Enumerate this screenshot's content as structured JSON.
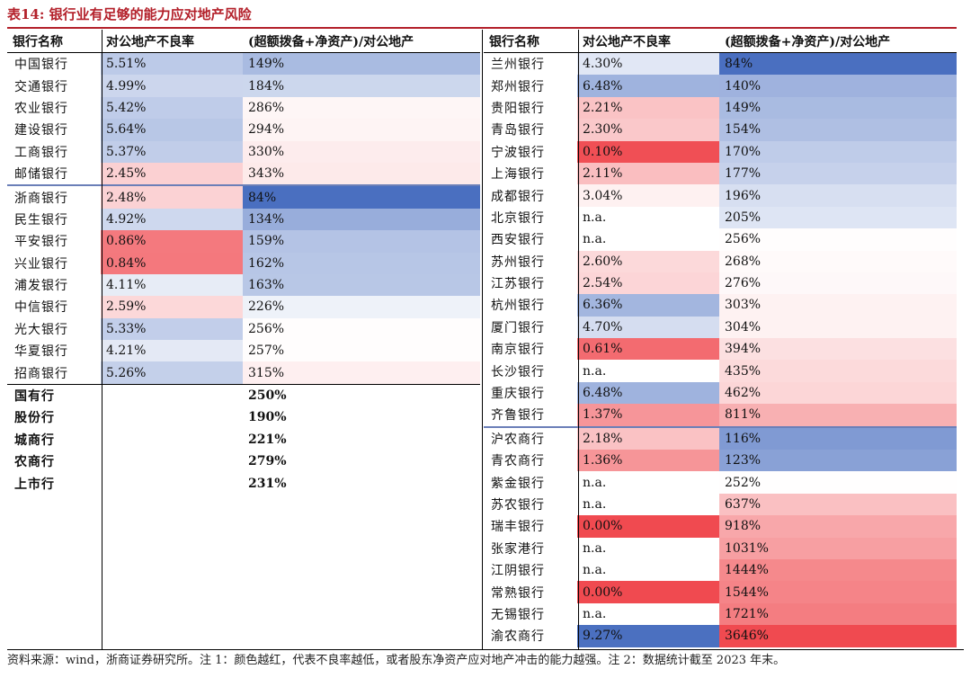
{
  "title": "表14:  银行业有足够的能力应对地产风险",
  "headers": {
    "name": "银行名称",
    "npl": "对公地产不良率",
    "ratio": "(超额拨备+净资产)/对公地产"
  },
  "colors": {
    "title_red": "#b3202a",
    "scale_blue": "#4a6fc0",
    "scale_white": "#ffffff",
    "scale_red": "#f04a50"
  },
  "left_groups": [
    {
      "rows": [
        {
          "name": "中国银行",
          "npl": "5.51%",
          "ratio": "149%"
        },
        {
          "name": "交通银行",
          "npl": "4.99%",
          "ratio": "184%"
        },
        {
          "name": "农业银行",
          "npl": "5.42%",
          "ratio": "286%"
        },
        {
          "name": "建设银行",
          "npl": "5.64%",
          "ratio": "294%"
        },
        {
          "name": "工商银行",
          "npl": "5.37%",
          "ratio": "330%"
        },
        {
          "name": "邮储银行",
          "npl": "2.45%",
          "ratio": "343%"
        }
      ]
    },
    {
      "rows": [
        {
          "name": "浙商银行",
          "npl": "2.48%",
          "ratio": "84%"
        },
        {
          "name": "民生银行",
          "npl": "4.92%",
          "ratio": "134%"
        },
        {
          "name": "平安银行",
          "npl": "0.86%",
          "ratio": "159%"
        },
        {
          "name": "兴业银行",
          "npl": "0.84%",
          "ratio": "162%"
        },
        {
          "name": "浦发银行",
          "npl": "4.11%",
          "ratio": "163%"
        },
        {
          "name": "中信银行",
          "npl": "2.59%",
          "ratio": "226%"
        },
        {
          "name": "光大银行",
          "npl": "5.33%",
          "ratio": "256%"
        },
        {
          "name": "华夏银行",
          "npl": "4.21%",
          "ratio": "257%"
        },
        {
          "name": "招商银行",
          "npl": "5.26%",
          "ratio": "315%"
        }
      ]
    }
  ],
  "summary": [
    {
      "name": "国有行",
      "npl": "",
      "ratio": "250%"
    },
    {
      "name": "股份行",
      "npl": "",
      "ratio": "190%"
    },
    {
      "name": "城商行",
      "npl": "",
      "ratio": "221%"
    },
    {
      "name": "农商行",
      "npl": "",
      "ratio": "279%"
    },
    {
      "name": "上市行",
      "npl": "",
      "ratio": "231%"
    }
  ],
  "right_groups": [
    {
      "rows": [
        {
          "name": "兰州银行",
          "npl": "4.30%",
          "ratio": "84%"
        },
        {
          "name": "郑州银行",
          "npl": "6.48%",
          "ratio": "140%"
        },
        {
          "name": "贵阳银行",
          "npl": "2.21%",
          "ratio": "149%"
        },
        {
          "name": "青岛银行",
          "npl": "2.30%",
          "ratio": "154%"
        },
        {
          "name": "宁波银行",
          "npl": "0.10%",
          "ratio": "170%"
        },
        {
          "name": "上海银行",
          "npl": "2.11%",
          "ratio": "177%"
        },
        {
          "name": "成都银行",
          "npl": "3.04%",
          "ratio": "196%"
        },
        {
          "name": "北京银行",
          "npl": "n.a.",
          "ratio": "205%"
        },
        {
          "name": "西安银行",
          "npl": "n.a.",
          "ratio": "256%"
        },
        {
          "name": "苏州银行",
          "npl": "2.60%",
          "ratio": "268%"
        },
        {
          "name": "江苏银行",
          "npl": "2.54%",
          "ratio": "276%"
        },
        {
          "name": "杭州银行",
          "npl": "6.36%",
          "ratio": "303%"
        },
        {
          "name": "厦门银行",
          "npl": "4.70%",
          "ratio": "304%"
        },
        {
          "name": "南京银行",
          "npl": "0.61%",
          "ratio": "394%"
        },
        {
          "name": "长沙银行",
          "npl": "n.a.",
          "ratio": "435%"
        },
        {
          "name": "重庆银行",
          "npl": "6.48%",
          "ratio": "462%"
        },
        {
          "name": "齐鲁银行",
          "npl": "1.37%",
          "ratio": "811%"
        }
      ]
    },
    {
      "rows": [
        {
          "name": "沪农商行",
          "npl": "2.18%",
          "ratio": "116%"
        },
        {
          "name": "青农商行",
          "npl": "1.36%",
          "ratio": "123%"
        },
        {
          "name": "紫金银行",
          "npl": "n.a.",
          "ratio": "252%"
        },
        {
          "name": "苏农银行",
          "npl": "n.a.",
          "ratio": "637%"
        },
        {
          "name": "瑞丰银行",
          "npl": "0.00%",
          "ratio": "918%"
        },
        {
          "name": "张家港行",
          "npl": "n.a.",
          "ratio": "1031%"
        },
        {
          "name": "江阴银行",
          "npl": "n.a.",
          "ratio": "1444%"
        },
        {
          "name": "常熟银行",
          "npl": "0.00%",
          "ratio": "1544%"
        },
        {
          "name": "无锡银行",
          "npl": "n.a.",
          "ratio": "1721%"
        },
        {
          "name": "渝农商行",
          "npl": "9.27%",
          "ratio": "3646%"
        }
      ]
    }
  ],
  "source": "资料来源：wind，浙商证券研究所。注 1：颜色越红，代表不良率越低，或者股东净资产应对地产冲击的能力越强。注 2：数据统计截至 2023 年末。"
}
